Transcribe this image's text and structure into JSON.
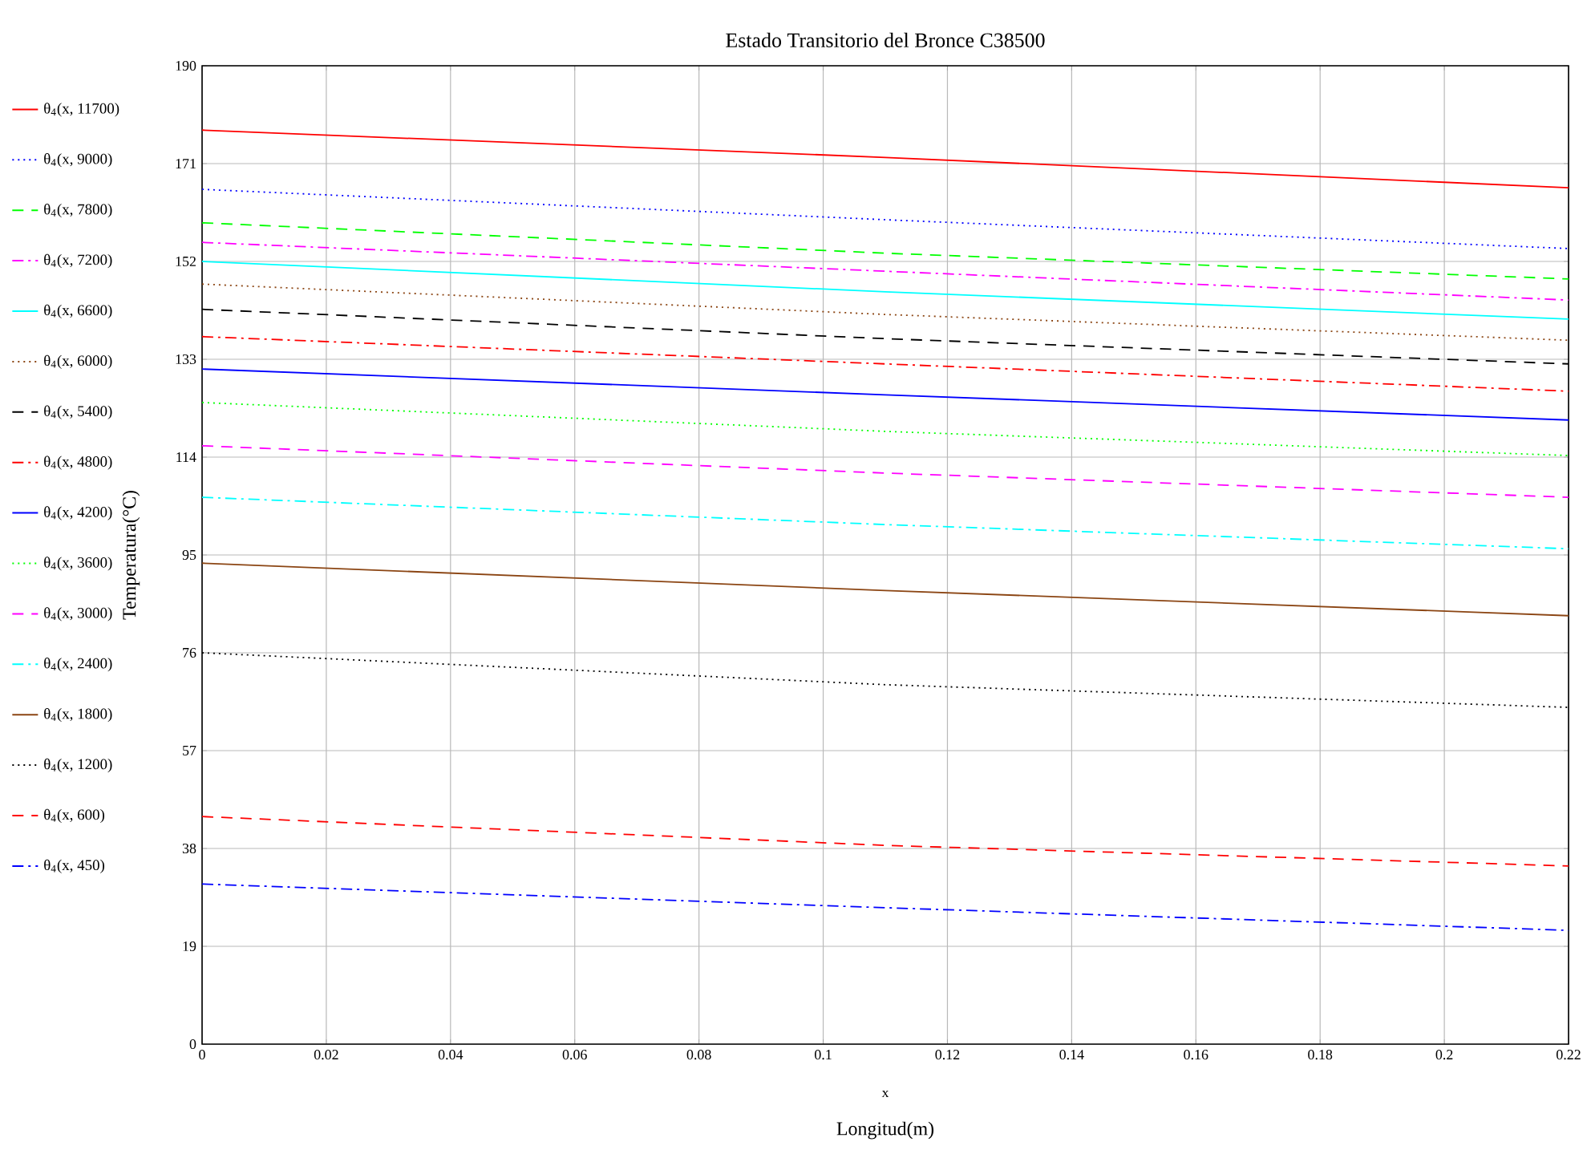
{
  "chart_data": {
    "type": "line",
    "title": "Estado Transitorio del Bronce C38500",
    "xlabel": "Longitud(m)",
    "ylabel": "Temperatura(°C)",
    "annotations": [
      "x"
    ],
    "x": [
      0,
      0.11,
      0.22
    ],
    "xlim": [
      0,
      0.22
    ],
    "xticks": [
      0,
      0.02,
      0.04,
      0.06,
      0.08,
      0.1,
      0.12,
      0.14,
      0.16,
      0.18,
      0.2,
      0.22
    ],
    "ylim": [
      0,
      190
    ],
    "yticks": [
      0,
      19,
      38,
      57,
      76,
      95,
      114,
      133,
      152,
      171,
      190
    ],
    "grid": true,
    "legend": "left",
    "series": [
      {
        "name": "θ$_{4}$(x, 11700)",
        "color": "#ff0000",
        "line_style": "solid",
        "values": [
          177.5,
          172.2,
          166.3
        ]
      },
      {
        "name": "θ$_{4}$(x, 9000)",
        "color": "#0000ff",
        "line_style": "dotted",
        "values": [
          166.0,
          160.1,
          154.5
        ]
      },
      {
        "name": "θ$_{4}$(x, 7800)",
        "color": "#00ff00",
        "line_style": "dashed",
        "values": [
          159.5,
          153.6,
          148.6
        ]
      },
      {
        "name": "θ$_{4}$(x, 7200)",
        "color": "#ff00ff",
        "line_style": "dashdot",
        "values": [
          155.7,
          150.1,
          144.5
        ]
      },
      {
        "name": "θ$_{4}$(x, 6600)",
        "color": "#00ffff",
        "line_style": "solid",
        "values": [
          152.0,
          146.1,
          140.8
        ]
      },
      {
        "name": "θ$_{4}$(x, 6000)",
        "color": "#8b4513",
        "line_style": "dotted",
        "values": [
          147.6,
          141.7,
          136.7
        ]
      },
      {
        "name": "θ$_{4}$(x, 5400)",
        "color": "#000000",
        "line_style": "dashed",
        "values": [
          142.7,
          137.0,
          132.1
        ]
      },
      {
        "name": "θ$_{4}$(x, 4800)",
        "color": "#ff0000",
        "line_style": "dashdot",
        "values": [
          137.4,
          132.1,
          126.8
        ]
      },
      {
        "name": "θ$_{4}$(x, 4200)",
        "color": "#0000ff",
        "line_style": "solid",
        "values": [
          131.1,
          126.1,
          121.2
        ]
      },
      {
        "name": "θ$_{4}$(x, 3600)",
        "color": "#00ff00",
        "line_style": "dotted",
        "values": [
          124.6,
          119.0,
          114.3
        ]
      },
      {
        "name": "θ$_{4}$(x, 3000)",
        "color": "#ff00ff",
        "line_style": "dashed",
        "values": [
          116.2,
          110.9,
          106.2
        ]
      },
      {
        "name": "θ$_{4}$(x, 2400)",
        "color": "#00ffff",
        "line_style": "dashdot",
        "values": [
          106.2,
          100.9,
          96.2
        ]
      },
      {
        "name": "θ$_{4}$(x, 1800)",
        "color": "#8b4513",
        "line_style": "solid",
        "values": [
          93.4,
          88.1,
          83.2
        ]
      },
      {
        "name": "θ$_{4}$(x, 1200)",
        "color": "#000000",
        "line_style": "dotted",
        "values": [
          76.0,
          69.8,
          65.4
        ]
      },
      {
        "name": "θ$_{4}$(x, 600)",
        "color": "#ff0000",
        "line_style": "dashed",
        "values": [
          44.2,
          38.6,
          34.6
        ]
      },
      {
        "name": "θ$_{4}$(x, 450)",
        "color": "#0000ff",
        "line_style": "dashdot",
        "values": [
          31.1,
          26.5,
          22.1
        ]
      }
    ]
  }
}
